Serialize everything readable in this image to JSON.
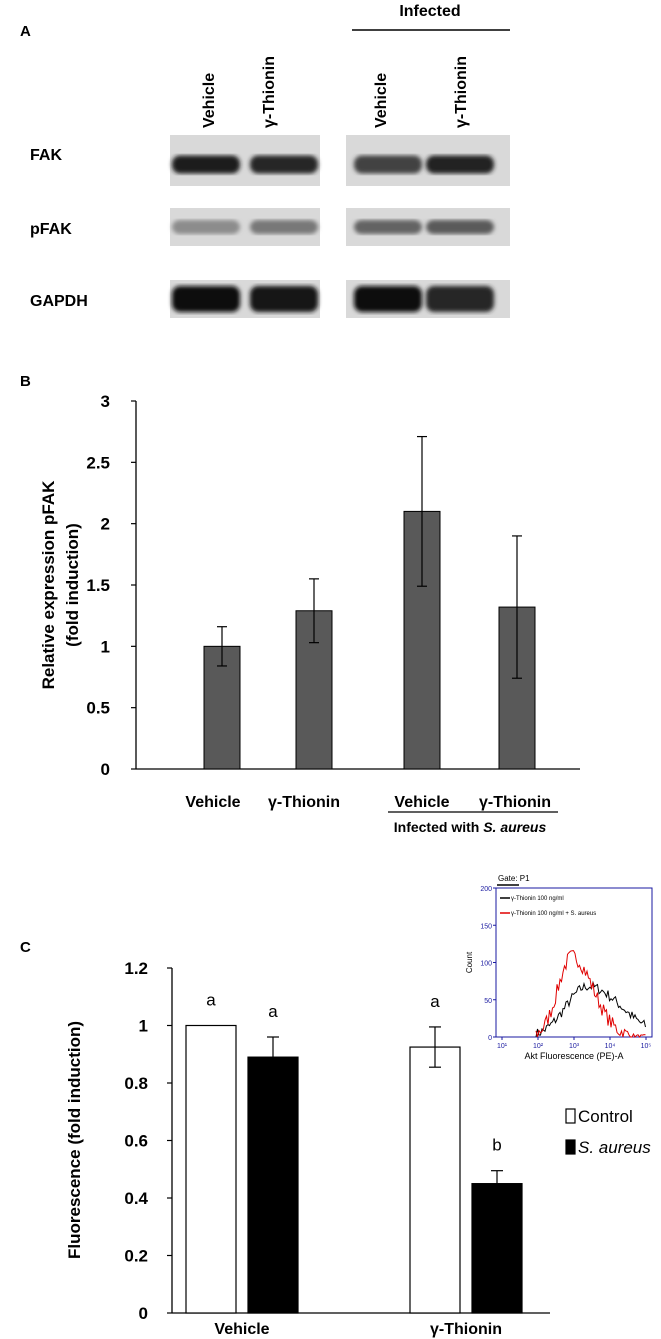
{
  "panel_a": {
    "label": "A",
    "infected_label": "Infected",
    "lane_labels": [
      "Vehicle",
      "γ-Thionin",
      "Vehicle",
      "γ-Thionin"
    ],
    "row_labels": [
      "FAK",
      "pFAK",
      "GAPDH"
    ],
    "band_intensity": [
      [
        0.92,
        0.85,
        0.72,
        0.88
      ],
      [
        0.35,
        0.45,
        0.55,
        0.6
      ],
      [
        0.97,
        0.96,
        0.97,
        0.85
      ]
    ]
  },
  "panel_b": {
    "label": "B",
    "group_label_prefix": "Infected with ",
    "group_label_italic": "S. aureus"
  },
  "panel_c": {
    "label": "C",
    "inset": {
      "gate_label": "Gate: P1",
      "legend": [
        "γ-Thionin 100 ng/ml",
        "γ-Thionin 100 ng/ml + S. aureus"
      ],
      "ylabel": "Count",
      "xlabel": "Akt Fluorescence (PE)-A",
      "yticks": [
        "0",
        "50",
        "100",
        "150",
        "200"
      ],
      "xticks": [
        "10¹",
        "10²",
        "10³",
        "10⁴",
        "10⁵"
      ],
      "colors": {
        "axis": "#1a1aa0",
        "black_series": "#000000",
        "red_series": "#e00000"
      }
    }
  },
  "chart_data": [
    {
      "type": "bar",
      "panel": "B",
      "title": "",
      "xlabel": "",
      "ylabel": "Relative expression pFAK (fold induction)",
      "ylabel_lines": [
        "Relative expression pFAK",
        "(fold induction)"
      ],
      "categories": [
        "Vehicle",
        "γ-Thionin",
        "Vehicle",
        "γ-Thionin"
      ],
      "values": [
        1.0,
        1.29,
        2.1,
        1.32
      ],
      "errors": [
        0.16,
        0.26,
        0.61,
        0.58
      ],
      "ylim": [
        0,
        3
      ],
      "yticks": [
        "0",
        "0.5",
        "1",
        "1.5",
        "2",
        "2.5",
        "3"
      ],
      "bar_color": "#595959",
      "grid": false
    },
    {
      "type": "bar",
      "panel": "C",
      "title": "",
      "xlabel": "",
      "ylabel": "Fluorescence (fold induction)",
      "categories": [
        "Vehicle",
        "γ-Thionin"
      ],
      "series": [
        {
          "name": "Control",
          "values": [
            1.0,
            0.925
          ],
          "errors": [
            0,
            0.07
          ],
          "letters": [
            "a",
            "a"
          ],
          "color": "#ffffff"
        },
        {
          "name": "S. aureus",
          "values": [
            0.89,
            0.45
          ],
          "errors": [
            0.07,
            0.045
          ],
          "letters": [
            "a",
            "b"
          ],
          "color": "#000000"
        }
      ],
      "ylim": [
        0,
        1.2
      ],
      "yticks": [
        "0",
        "0.2",
        "0.4",
        "0.6",
        "0.8",
        "1",
        "1.2"
      ],
      "legend_placement": "right",
      "grid": false
    }
  ]
}
